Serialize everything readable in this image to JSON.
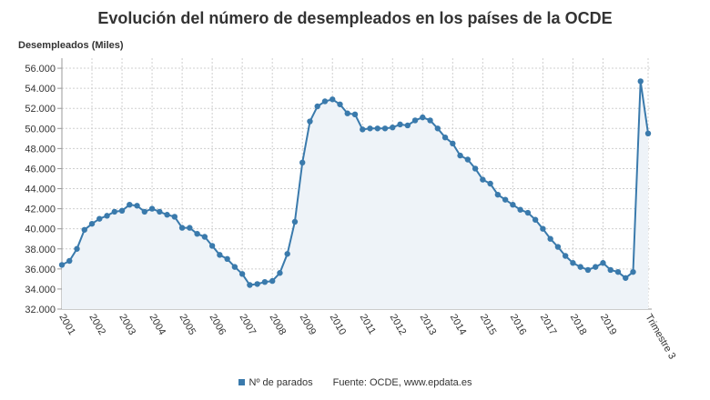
{
  "title": "Evolución del número de desempleados en los países de la OCDE",
  "colors": {
    "line": "#3a7aac",
    "fill": "#eef3f8",
    "grid": "#cfcfcf"
  },
  "legend": {
    "series_name": "Nº de parados",
    "source": "Fuente: OCDE, www.epdata.es"
  },
  "chart_data": {
    "type": "line",
    "title": "Evolución del número de desempleados en los países de la OCDE",
    "ylabel": "Desempleados (Miles)",
    "xlabel": "",
    "ylim": [
      32000,
      57000
    ],
    "grid": true,
    "legend_position": "bottom",
    "x_tick_labels": [
      "2001",
      "2002",
      "2003",
      "2004",
      "2005",
      "2006",
      "2007",
      "2008",
      "2009",
      "2010",
      "2011",
      "2012",
      "2013",
      "2014",
      "2015",
      "2016",
      "2017",
      "2018",
      "2019",
      "Trimestre 3"
    ],
    "y_tick_labels": [
      "32.000",
      "34.000",
      "36.000",
      "38.000",
      "40.000",
      "42.000",
      "44.000",
      "46.000",
      "48.000",
      "50.000",
      "52.000",
      "54.000",
      "56.000"
    ],
    "y_tick_values": [
      32000,
      34000,
      36000,
      38000,
      40000,
      42000,
      44000,
      46000,
      48000,
      50000,
      52000,
      54000,
      56000
    ],
    "series": [
      {
        "name": "Nº de parados",
        "x": [
          "2001 T1",
          "2001 T2",
          "2001 T3",
          "2001 T4",
          "2002 T1",
          "2002 T2",
          "2002 T3",
          "2002 T4",
          "2003 T1",
          "2003 T2",
          "2003 T3",
          "2003 T4",
          "2004 T1",
          "2004 T2",
          "2004 T3",
          "2004 T4",
          "2005 T1",
          "2005 T2",
          "2005 T3",
          "2005 T4",
          "2006 T1",
          "2006 T2",
          "2006 T3",
          "2006 T4",
          "2007 T1",
          "2007 T2",
          "2007 T3",
          "2007 T4",
          "2008 T1",
          "2008 T2",
          "2008 T3",
          "2008 T4",
          "2009 T1",
          "2009 T2",
          "2009 T3",
          "2009 T4",
          "2010 T1",
          "2010 T2",
          "2010 T3",
          "2010 T4",
          "2011 T1",
          "2011 T2",
          "2011 T3",
          "2011 T4",
          "2012 T1",
          "2012 T2",
          "2012 T3",
          "2012 T4",
          "2013 T1",
          "2013 T2",
          "2013 T3",
          "2013 T4",
          "2014 T1",
          "2014 T2",
          "2014 T3",
          "2014 T4",
          "2015 T1",
          "2015 T2",
          "2015 T3",
          "2015 T4",
          "2016 T1",
          "2016 T2",
          "2016 T3",
          "2016 T4",
          "2017 T1",
          "2017 T2",
          "2017 T3",
          "2017 T4",
          "2018 T1",
          "2018 T2",
          "2018 T3",
          "2018 T4",
          "2019 T1",
          "2019 T2",
          "2019 T3",
          "2019 T4",
          "2020 T1",
          "2020 T2",
          "2020 T3"
        ],
        "values": [
          36400,
          36800,
          38000,
          39900,
          40500,
          41000,
          41300,
          41700,
          41800,
          42400,
          42300,
          41700,
          42000,
          41700,
          41400,
          41200,
          40100,
          40100,
          39500,
          39200,
          38300,
          37400,
          37000,
          36200,
          35500,
          34400,
          34500,
          34700,
          34800,
          35600,
          37500,
          40700,
          46600,
          50700,
          52200,
          52700,
          52900,
          52400,
          51500,
          51400,
          49900,
          50000,
          50000,
          50000,
          50100,
          50400,
          50300,
          50800,
          51100,
          50800,
          50000,
          49100,
          48500,
          47300,
          46900,
          46000,
          44900,
          44500,
          43400,
          42900,
          42400,
          41900,
          41600,
          40900,
          40000,
          39000,
          38200,
          37300,
          36600,
          36200,
          35900,
          36200,
          36600,
          35900,
          35700,
          35100,
          35700,
          54700,
          49500
        ]
      }
    ]
  }
}
